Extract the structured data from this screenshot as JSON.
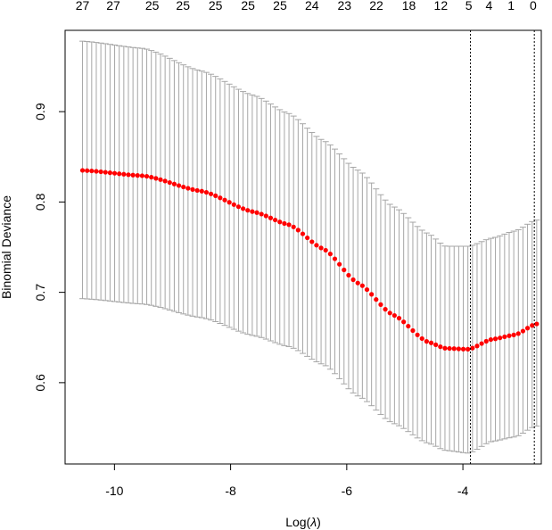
{
  "chart_data": {
    "type": "scatter",
    "title": "",
    "xlabel": "Log(λ)",
    "ylabel": "Binomial Deviance",
    "xlim": [
      -10.85,
      -2.65
    ],
    "ylim": [
      0.51,
      0.99
    ],
    "x_ticks": [
      -10,
      -8,
      -6,
      -4
    ],
    "x_tick_labels": [
      "-10",
      "-8",
      "-6",
      "-4"
    ],
    "y_ticks": [
      0.6,
      0.7,
      0.8,
      0.9
    ],
    "y_tick_labels": [
      "0.6",
      "0.7",
      "0.8",
      "0.9"
    ],
    "top_axis_labels": [
      {
        "x": -10.55,
        "label": "27"
      },
      {
        "x": -10.02,
        "label": "27"
      },
      {
        "x": -9.35,
        "label": "25"
      },
      {
        "x": -8.82,
        "label": "25"
      },
      {
        "x": -8.26,
        "label": "25"
      },
      {
        "x": -7.7,
        "label": "25"
      },
      {
        "x": -7.15,
        "label": "25"
      },
      {
        "x": -6.6,
        "label": "24"
      },
      {
        "x": -6.04,
        "label": "23"
      },
      {
        "x": -5.49,
        "label": "22"
      },
      {
        "x": -4.93,
        "label": "18"
      },
      {
        "x": -4.38,
        "label": "12"
      },
      {
        "x": -3.9,
        "label": "5"
      },
      {
        "x": -3.55,
        "label": "4"
      },
      {
        "x": -3.17,
        "label": "1"
      },
      {
        "x": -2.79,
        "label": "0"
      }
    ],
    "vlines": [
      -3.87,
      -2.77
    ],
    "x_start": -10.55,
    "x_step": 0.079,
    "n_points": 100,
    "mean_control": [
      [
        -10.55,
        0.835
      ],
      [
        -9.5,
        0.829
      ],
      [
        -8.5,
        0.812
      ],
      [
        -7.6,
        0.789
      ],
      [
        -7.0,
        0.775
      ],
      [
        -6.4,
        0.748
      ],
      [
        -5.8,
        0.71
      ],
      [
        -5.2,
        0.675
      ],
      [
        -4.6,
        0.645
      ],
      [
        -4.3,
        0.638
      ],
      [
        -3.9,
        0.637
      ],
      [
        -3.5,
        0.648
      ],
      [
        -3.1,
        0.653
      ],
      [
        -2.74,
        0.665
      ]
    ],
    "upper_control": [
      [
        -10.55,
        0.978
      ],
      [
        -9.5,
        0.97
      ],
      [
        -8.5,
        0.945
      ],
      [
        -7.6,
        0.918
      ],
      [
        -7.0,
        0.898
      ],
      [
        -6.4,
        0.868
      ],
      [
        -5.8,
        0.835
      ],
      [
        -5.2,
        0.795
      ],
      [
        -4.6,
        0.765
      ],
      [
        -4.3,
        0.751
      ],
      [
        -3.9,
        0.751
      ],
      [
        -3.5,
        0.76
      ],
      [
        -3.1,
        0.768
      ],
      [
        -2.74,
        0.78
      ]
    ],
    "lower_control": [
      [
        -10.55,
        0.693
      ],
      [
        -9.5,
        0.687
      ],
      [
        -8.5,
        0.672
      ],
      [
        -7.6,
        0.652
      ],
      [
        -7.0,
        0.64
      ],
      [
        -6.4,
        0.62
      ],
      [
        -5.8,
        0.585
      ],
      [
        -5.2,
        0.555
      ],
      [
        -4.6,
        0.533
      ],
      [
        -4.3,
        0.525
      ],
      [
        -3.9,
        0.522
      ],
      [
        -3.5,
        0.535
      ],
      [
        -3.1,
        0.54
      ],
      [
        -2.74,
        0.552
      ]
    ],
    "point_color": "#ff0000",
    "errorbar_color": "#a6a6a6",
    "grid": false,
    "legend": "none"
  }
}
